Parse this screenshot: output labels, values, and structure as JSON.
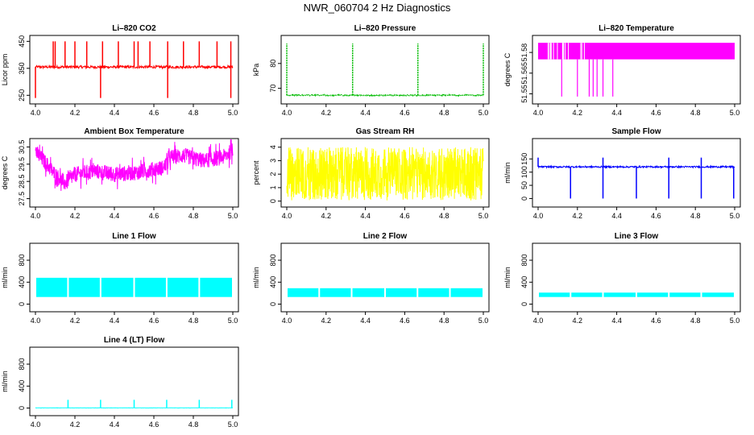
{
  "page_title": "NWR_060704  2 Hz Diagnostics",
  "chart_data": [
    {
      "id": "co2",
      "type": "line",
      "title": "Li–820 CO2",
      "ylabel": "Licor ppm",
      "color": "#ff0000",
      "x_range": [
        4.0,
        5.0
      ],
      "xticks": [
        "4.0",
        "4.2",
        "4.4",
        "4.6",
        "4.8",
        "5.0"
      ],
      "y_range": [
        230,
        460
      ],
      "yticks": [
        {
          "v": 250,
          "t": "250"
        },
        {
          "v": 350,
          "t": "350"
        },
        {
          "v": 450,
          "t": "450"
        }
      ],
      "pattern": {
        "kind": "noisy_baseline",
        "base": 355,
        "noise": 5,
        "spikes_up": [
          4.09,
          4.1,
          4.15,
          4.2,
          4.26,
          4.34,
          4.42,
          4.5,
          4.52,
          4.58,
          4.67,
          4.75,
          4.83,
          4.92,
          4.99
        ],
        "spike_up_to": 450,
        "spikes_down": [
          4.0,
          4.33,
          4.67,
          4.99
        ],
        "spike_down_to": 240
      }
    },
    {
      "id": "pressure",
      "type": "line",
      "title": "Li–820 Pressure",
      "ylabel": "kPa",
      "color": "#00bb00",
      "x_range": [
        4.0,
        5.0
      ],
      "xticks": [
        "4.0",
        "4.2",
        "4.4",
        "4.6",
        "4.8",
        "5.0"
      ],
      "y_range": [
        65,
        90
      ],
      "yticks": [
        {
          "v": 70,
          "t": "70"
        },
        {
          "v": 80,
          "t": "80"
        }
      ],
      "pattern": {
        "kind": "points_baseline",
        "base": 67.2,
        "noise": 0.2,
        "spikes_up": [
          4.0,
          4.335,
          4.667,
          5.0
        ],
        "spike_up_to": 88
      }
    },
    {
      "id": "temp820",
      "type": "line",
      "title": "Li–820 Temperature",
      "ylabel": "degrees C",
      "color": "#ff00ff",
      "x_range": [
        4.0,
        5.0
      ],
      "xticks": [
        "4.0",
        "4.2",
        "4.4",
        "4.6",
        "4.8",
        "5.0"
      ],
      "y_range": [
        51.545,
        51.59
      ],
      "yticks": [
        {
          "v": 51.55,
          "t": "51.55"
        },
        {
          "v": 51.565,
          "t": "51.565"
        },
        {
          "v": 51.58,
          "t": "51.58"
        }
      ],
      "pattern": {
        "kind": "digital_toggle",
        "low": 51.575,
        "high": 51.587,
        "spikes_down": [
          4.12,
          4.2,
          4.26,
          4.28,
          4.3,
          4.33,
          4.38
        ],
        "spike_down_to": 51.548
      }
    },
    {
      "id": "ambient",
      "type": "line",
      "title": "Ambient Box Temperature",
      "ylabel": "degrees C",
      "color": "#ff00ff",
      "x_range": [
        4.0,
        5.0
      ],
      "xticks": [
        "4.0",
        "4.2",
        "4.4",
        "4.6",
        "4.8",
        "5.0"
      ],
      "y_range": [
        27.2,
        30.8
      ],
      "yticks": [
        {
          "v": 27.5,
          "t": "27.5"
        },
        {
          "v": 28.5,
          "t": "28.5"
        },
        {
          "v": 29.5,
          "t": "29.5"
        },
        {
          "v": 30.5,
          "t": "30.5"
        }
      ],
      "pattern": {
        "kind": "noisy_curve",
        "noise": 0.45,
        "curve_x": [
          4.0,
          4.05,
          4.1,
          4.15,
          4.2,
          4.3,
          4.4,
          4.5,
          4.6,
          4.65,
          4.68,
          4.75,
          4.85,
          4.95,
          5.0
        ],
        "curve_y": [
          30.2,
          29.6,
          28.9,
          28.4,
          28.9,
          29.1,
          28.9,
          29.0,
          29.2,
          29.3,
          29.9,
          30.0,
          29.7,
          29.9,
          30.3
        ]
      }
    },
    {
      "id": "rh",
      "type": "line",
      "title": "Gas Stream RH",
      "ylabel": "percent",
      "color": "#ffff00",
      "x_range": [
        4.0,
        5.0
      ],
      "xticks": [
        "4.0",
        "4.2",
        "4.4",
        "4.6",
        "4.8",
        "5.0"
      ],
      "y_range": [
        -0.2,
        4.4
      ],
      "yticks": [
        {
          "v": 0,
          "t": "0"
        },
        {
          "v": 1,
          "t": "1"
        },
        {
          "v": 2,
          "t": "2"
        },
        {
          "v": 3,
          "t": "3"
        },
        {
          "v": 4,
          "t": "4"
        }
      ],
      "pattern": {
        "kind": "band_noise",
        "low": 0.05,
        "high": 4.0,
        "center": 2.1
      }
    },
    {
      "id": "sample",
      "type": "line",
      "title": "Sample Flow",
      "ylabel": "ml/min",
      "color": "#0000ff",
      "x_range": [
        4.0,
        5.0
      ],
      "xticks": [
        "4.0",
        "4.2",
        "4.4",
        "4.6",
        "4.8",
        "5.0"
      ],
      "y_range": [
        -20,
        215
      ],
      "yticks": [
        {
          "v": 0,
          "t": "0"
        },
        {
          "v": 50,
          "t": "50"
        },
        {
          "v": 100,
          "t": "100"
        },
        {
          "v": 150,
          "t": "150"
        }
      ],
      "pattern": {
        "kind": "noisy_baseline",
        "base": 120,
        "noise": 3,
        "spikes_up": [
          4.0,
          4.33,
          4.665,
          4.83
        ],
        "spike_up_to": 155,
        "spikes_down": [
          4.165,
          4.33,
          4.5,
          4.665,
          4.83,
          4.995
        ],
        "spike_down_to": 0
      }
    },
    {
      "id": "line1",
      "type": "line",
      "title": "Line 1 Flow",
      "ylabel": "ml/min",
      "color": "#00ffff",
      "x_range": [
        4.0,
        5.0
      ],
      "xticks": [
        "4.0",
        "4.2",
        "4.4",
        "4.6",
        "4.8",
        "5.0"
      ],
      "y_range": [
        -80,
        1050
      ],
      "yticks": [
        {
          "v": 0,
          "t": "0"
        },
        {
          "v": 400,
          "t": "400"
        },
        {
          "v": 800,
          "t": "800"
        }
      ],
      "pattern": {
        "kind": "block_band",
        "low": 130,
        "high": 480,
        "gaps": [
          4.165,
          4.33,
          4.5,
          4.665,
          4.83
        ]
      }
    },
    {
      "id": "line2",
      "type": "line",
      "title": "Line 2 Flow",
      "ylabel": "ml/min",
      "color": "#00ffff",
      "x_range": [
        4.0,
        5.0
      ],
      "xticks": [
        "4.0",
        "4.2",
        "4.4",
        "4.6",
        "4.8",
        "5.0"
      ],
      "y_range": [
        -80,
        1050
      ],
      "yticks": [
        {
          "v": 0,
          "t": "0"
        },
        {
          "v": 400,
          "t": "400"
        },
        {
          "v": 800,
          "t": "800"
        }
      ],
      "pattern": {
        "kind": "block_band",
        "low": 130,
        "high": 290,
        "gaps": [
          4.165,
          4.33,
          4.5,
          4.665,
          4.83
        ]
      }
    },
    {
      "id": "line3",
      "type": "line",
      "title": "Line 3 Flow",
      "ylabel": "ml/min",
      "color": "#00ffff",
      "x_range": [
        4.0,
        5.0
      ],
      "xticks": [
        "4.0",
        "4.2",
        "4.4",
        "4.6",
        "4.8",
        "5.0"
      ],
      "y_range": [
        -80,
        1050
      ],
      "yticks": [
        {
          "v": 0,
          "t": "0"
        },
        {
          "v": 400,
          "t": "400"
        },
        {
          "v": 800,
          "t": "800"
        }
      ],
      "pattern": {
        "kind": "block_band",
        "low": 130,
        "high": 210,
        "gaps": [
          4.165,
          4.33,
          4.5,
          4.665,
          4.83
        ]
      }
    },
    {
      "id": "line4",
      "type": "line",
      "title": "Line 4 (LT) Flow",
      "ylabel": "ml/min",
      "color": "#00ffff",
      "x_range": [
        4.0,
        5.0
      ],
      "xticks": [
        "4.0",
        "4.2",
        "4.4",
        "4.6",
        "4.8",
        "5.0"
      ],
      "y_range": [
        -80,
        1050
      ],
      "yticks": [
        {
          "v": 0,
          "t": "0"
        },
        {
          "v": 400,
          "t": "400"
        },
        {
          "v": 800,
          "t": "800"
        }
      ],
      "pattern": {
        "kind": "noisy_baseline",
        "base": 3,
        "noise": 2,
        "spikes_up": [
          4.165,
          4.33,
          4.5,
          4.665,
          4.83,
          4.995
        ],
        "spike_up_to": 150
      }
    }
  ]
}
